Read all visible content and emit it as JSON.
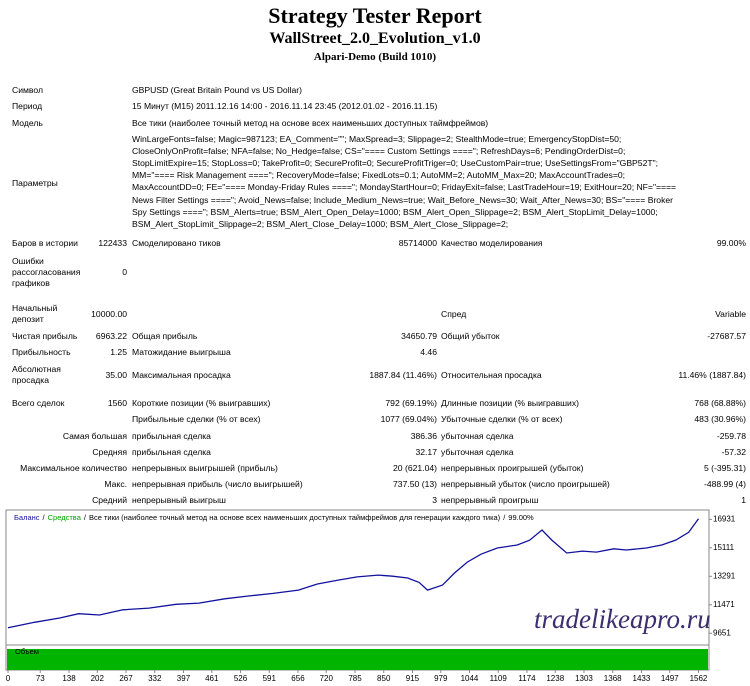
{
  "header": {
    "title": "Strategy Tester Report",
    "subtitle": "WallStreet_2.0_Evolution_v1.0",
    "server": "Alpari-Demo (Build 1010)"
  },
  "info": [
    [
      "Символ",
      "GBPUSD (Great Britain Pound vs US Dollar)"
    ],
    [
      "Период",
      "15 Минут (M15) 2011.12.16 14:00 - 2016.11.14 23:45 (2012.01.02 - 2016.11.15)"
    ],
    [
      "Модель",
      "Все тики (наиболее точный метод на основе всех наименьших доступных таймфреймов)"
    ]
  ],
  "parameters": {
    "label": "Параметры",
    "lines": [
      "WinLargeFonts=false; Magic=987123; EA_Comment=\"\"; MaxSpread=3; Slippage=2; StealthMode=true; EmergencyStopDist=50;",
      "CloseOnlyOnProfit=false; NFA=false; No_Hedge=false; CS=\"==== Custom Settings ====\"; RefreshDays=6; PendingOrderDist=0;",
      "StopLimitExpire=15; StopLoss=0; TakeProfit=0; SecureProfit=0; SecureProfitTriger=0; UseCustomPair=true; UseSettingsFrom=\"GBP52T\";",
      "MM=\"==== Risk Management ====\"; RecoveryMode=false; FixedLots=0.1; AutoMM=2; AutoMM_Max=20; MaxAccountTrades=0;",
      "MaxAccountDD=0; FE=\"==== Monday-Friday Rules ====\"; MondayStartHour=0; FridayExit=false; LastTradeHour=19; ExitHour=20; NF=\"====",
      "News Filter Settings ====\"; Avoid_News=false; Include_Medium_News=true; Wait_Before_News=30; Wait_After_News=30; BS=\"==== Broker",
      "Spy Settings ====\"; BSM_Alerts=true; BSM_Alert_Open_Delay=1000; BSM_Alert_Open_Slippage=2; BSM_Alert_StopLimit_Delay=1000;",
      "BSM_Alert_StopLimit_Slippage=2; BSM_Alert_Close_Delay=1000; BSM_Alert_Close_Slippage=2;"
    ]
  },
  "stats": [
    [
      "Баров в истории",
      "122433",
      "Смоделировано тиков",
      "85714000",
      "Качество моделирования",
      "99.00%"
    ],
    [
      "Ошибки рассогласования графиков",
      "0"
    ],
    [
      "Начальный депозит",
      "10000.00",
      "Спред",
      "Variable"
    ],
    [
      "Чистая прибыль",
      "6963.22",
      "Общая прибыль",
      "34650.79",
      "Общий убыток",
      "-27687.57"
    ],
    [
      "Прибыльность",
      "1.25",
      "Матожидание выигрыша",
      "4.46"
    ],
    [
      "Абсолютная просадка",
      "35.00",
      "Максимальная просадка",
      "1887.84 (11.46%)",
      "Относительная просадка",
      "11.46% (1887.84)"
    ],
    [
      "Всего сделок",
      "1560",
      "Короткие позиции (% выигравших)",
      "792 (69.19%)",
      "Длинные позиции (% выигравших)",
      "768 (68.88%)"
    ],
    [
      "Прибыльные сделки (% от всех)",
      "1077 (69.04%)",
      "Убыточные сделки (% от всех)",
      "483 (30.96%)"
    ],
    [
      "Самая большая",
      "прибыльная сделка",
      "386.36",
      "убыточная сделка",
      "-259.78"
    ],
    [
      "Средняя",
      "прибыльная сделка",
      "32.17",
      "убыточная сделка",
      "-57.32"
    ],
    [
      "Максимальное количество",
      "непрерывных выигрышей (прибыль)",
      "20 (621.04)",
      "непрерывных проигрышей (убыток)",
      "5 (-395.31)"
    ],
    [
      "Макс.",
      "непрерывная прибыль (число выигрышей)",
      "737.50 (13)",
      "непрерывный убыток (число проигрышей)",
      "-488.99 (4)"
    ],
    [
      "Средний",
      "непрерывный выигрыш",
      "3",
      "непрерывный проигрыш",
      "1"
    ]
  ],
  "watermark": "tradelikeapro.ru",
  "chart_data": {
    "type": "line",
    "legend_separator": "/",
    "model_note": "Все тики (наиболее точный метод на основе всех наименьших доступных таймфреймов для генерации каждого тика)",
    "quality": "99.00%",
    "volume_label": "Объем",
    "volume_color": "#00b400",
    "x": [
      0,
      60,
      117,
      160,
      207,
      260,
      319,
      380,
      432,
      490,
      544,
      600,
      657,
      700,
      747,
      790,
      837,
      870,
      904,
      930,
      949,
      983,
      1010,
      1039,
      1070,
      1107,
      1152,
      1180,
      1208,
      1230,
      1264,
      1300,
      1331,
      1370,
      1399,
      1444,
      1480,
      1511,
      1540,
      1562
    ],
    "series": [
      {
        "name": "Баланс",
        "color": "#12129e",
        "values": [
          10000,
          10350,
          10625,
          10900,
          10820,
          11150,
          11260,
          11500,
          11580,
          11850,
          12030,
          12200,
          12410,
          12800,
          13050,
          13250,
          13370,
          13300,
          13180,
          12900,
          12410,
          12730,
          13500,
          14200,
          14700,
          15100,
          15290,
          15600,
          16250,
          15610,
          14780,
          14900,
          14840,
          15050,
          14970,
          15100,
          15300,
          15610,
          16100,
          16963
        ]
      },
      {
        "name": "Средства",
        "color": "#00a000"
      }
    ],
    "xlim": [
      0,
      1570
    ],
    "xticks": [
      0,
      73,
      138,
      202,
      267,
      332,
      397,
      461,
      526,
      591,
      656,
      720,
      785,
      850,
      915,
      979,
      1044,
      1109,
      1174,
      1238,
      1303,
      1368,
      1433,
      1497,
      1562
    ],
    "ylim": [
      8900,
      17400
    ],
    "yticks": [
      9651,
      11471,
      13291,
      15111,
      16931
    ]
  }
}
